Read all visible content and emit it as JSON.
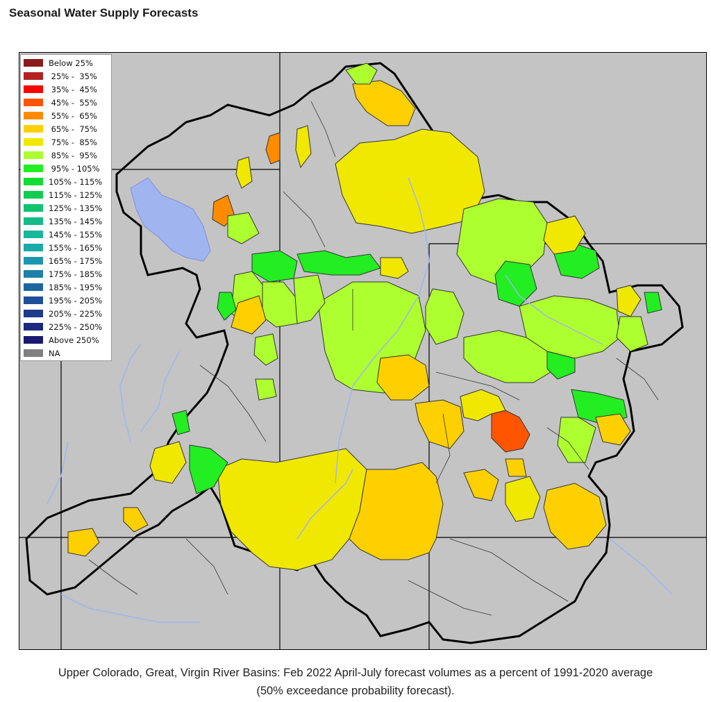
{
  "title": "Seasonal Water Supply Forecasts",
  "legend": [
    {
      "label": "Below 25%",
      "color": "#8b1a1a"
    },
    {
      "label": " 25% -  35%",
      "color": "#b22222"
    },
    {
      "label": " 35% -  45%",
      "color": "#ff0000"
    },
    {
      "label": " 45% -  55%",
      "color": "#ff5500"
    },
    {
      "label": " 55% -  65%",
      "color": "#ff8c00"
    },
    {
      "label": " 65% -  75%",
      "color": "#ffd000"
    },
    {
      "label": " 75% -  85%",
      "color": "#f0e800"
    },
    {
      "label": " 85% -  95%",
      "color": "#adff2f"
    },
    {
      "label": " 95% - 105%",
      "color": "#22ee22"
    },
    {
      "label": "105% - 115%",
      "color": "#11dd33"
    },
    {
      "label": "115% - 125%",
      "color": "#10cc50"
    },
    {
      "label": "125% - 135%",
      "color": "#12c270"
    },
    {
      "label": "135% - 145%",
      "color": "#14bb88"
    },
    {
      "label": "145% - 155%",
      "color": "#18b89a"
    },
    {
      "label": "155% - 165%",
      "color": "#1aaaa8"
    },
    {
      "label": "165% - 175%",
      "color": "#1c96b0"
    },
    {
      "label": "175% - 185%",
      "color": "#1e7fa8"
    },
    {
      "label": "185% - 195%",
      "color": "#1f65a0"
    },
    {
      "label": "195% - 205%",
      "color": "#1f4f98"
    },
    {
      "label": "205% - 225%",
      "color": "#1d3a8c"
    },
    {
      "label": "225% - 250%",
      "color": "#1b2a80"
    },
    {
      "label": "Above 250%",
      "color": "#1a1a70"
    },
    {
      "label": "NA",
      "color": "#808080"
    }
  ],
  "map": {
    "background": "#c4c4c4",
    "water_color": "#a0b4f0"
  },
  "caption_line1": "Upper Colorado, Great, Virgin River Basins: Feb 2022 April-July forecast volumes as a percent of 1991-2020 average",
  "caption_line2": "(50% exceedance probability forecast)."
}
